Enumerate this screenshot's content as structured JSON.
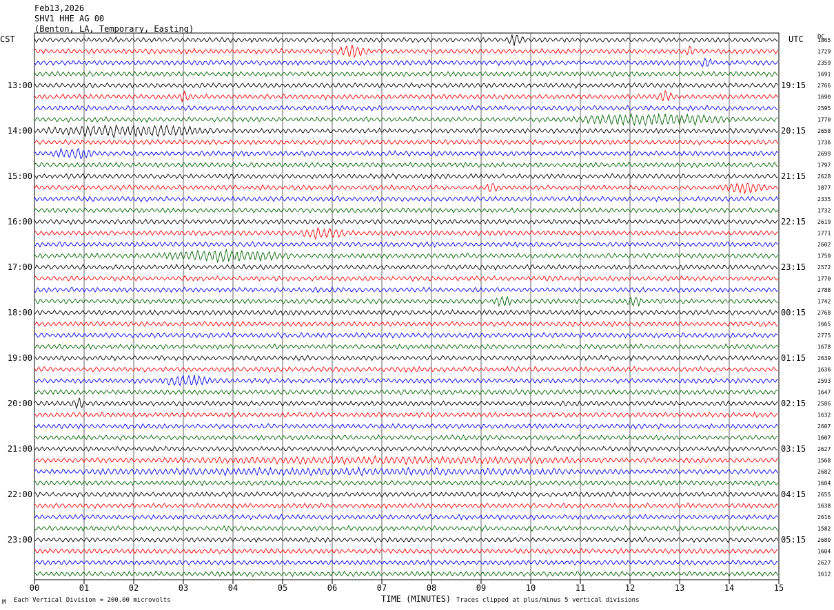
{
  "header": {
    "date": "Feb13,2026",
    "station": "SHV1 HHE AG 00",
    "location": "(Benton, LA, Temporary, Easting)"
  },
  "corners": {
    "left_tz": "CST",
    "right_tz": "UTC",
    "right_col": "DC"
  },
  "footer": {
    "scale": "Each Vertical Division =  200.00 microvolts",
    "clip": "Traces clipped at plus/minus 5 vertical divisions",
    "mark": "M"
  },
  "colors": {
    "trace_cycle": [
      "#000000",
      "#ff0000",
      "#0000ff",
      "#006400"
    ],
    "grid": "#000000",
    "background": "#ffffff"
  },
  "chart_data": {
    "type": "line",
    "xlabel": "TIME (MINUTES)",
    "xlim": [
      0,
      15
    ],
    "x_ticks": [
      "00",
      "01",
      "02",
      "03",
      "04",
      "05",
      "06",
      "07",
      "08",
      "09",
      "10",
      "11",
      "12",
      "13",
      "14",
      "15"
    ],
    "rows_per_hour": 4,
    "minutes_per_row": 15,
    "left_hour_labels": [
      "13:00",
      "14:00",
      "15:00",
      "16:00",
      "17:00",
      "18:00",
      "19:00",
      "20:00",
      "21:00",
      "22:00",
      "23:00"
    ],
    "right_hour_labels": [
      "19:15",
      "20:15",
      "21:15",
      "22:15",
      "23:15",
      "00:15",
      "01:15",
      "02:15",
      "03:15",
      "04:15",
      "05:15"
    ],
    "row_dc_offsets": [
      "1865",
      "1729",
      "2359",
      "1691",
      "2766",
      "1690",
      "2595",
      "1770",
      "2658",
      "1736",
      "2699",
      "1797",
      "2628",
      "1877",
      "2335",
      "1732",
      "2619",
      "1771",
      "2602",
      "1759",
      "2572",
      "1770",
      "2788",
      "1742",
      "2768",
      "1665",
      "2775",
      "1678",
      "2639",
      "1636",
      "2593",
      "1647",
      "2586",
      "1632",
      "2607",
      "1607",
      "2627",
      "1568",
      "2682",
      "1604",
      "2655",
      "1638",
      "2616",
      "1582",
      "2680",
      "1604",
      "2627",
      "1612"
    ],
    "notable_events": [
      {
        "row": 0,
        "start_min": 9.5,
        "end_min": 10.0
      },
      {
        "row": 1,
        "start_min": 6.0,
        "end_min": 7.0
      },
      {
        "row": 1,
        "start_min": 13.1,
        "end_min": 13.4
      },
      {
        "row": 2,
        "start_min": 13.4,
        "end_min": 13.7
      },
      {
        "row": 5,
        "start_min": 12.5,
        "end_min": 13.0
      },
      {
        "row": 5,
        "start_min": 2.9,
        "end_min": 3.2
      },
      {
        "row": 7,
        "start_min": 10.6,
        "end_min": 15.0
      },
      {
        "row": 8,
        "start_min": 0.0,
        "end_min": 4.5
      },
      {
        "row": 10,
        "start_min": 0.3,
        "end_min": 1.5
      },
      {
        "row": 13,
        "start_min": 13.8,
        "end_min": 15.0
      },
      {
        "row": 13,
        "start_min": 9.1,
        "end_min": 9.4
      },
      {
        "row": 17,
        "start_min": 5.3,
        "end_min": 6.5
      },
      {
        "row": 19,
        "start_min": 2.5,
        "end_min": 5.8
      },
      {
        "row": 23,
        "start_min": 9.2,
        "end_min": 9.7
      },
      {
        "row": 23,
        "start_min": 11.9,
        "end_min": 12.3
      },
      {
        "row": 30,
        "start_min": 2.5,
        "end_min": 3.9
      },
      {
        "row": 32,
        "start_min": 0.7,
        "end_min": 1.1
      },
      {
        "row": 37,
        "start_min": 1.8,
        "end_min": 14.8
      },
      {
        "row": 38,
        "start_min": 0.0,
        "end_min": 15.0
      }
    ]
  }
}
